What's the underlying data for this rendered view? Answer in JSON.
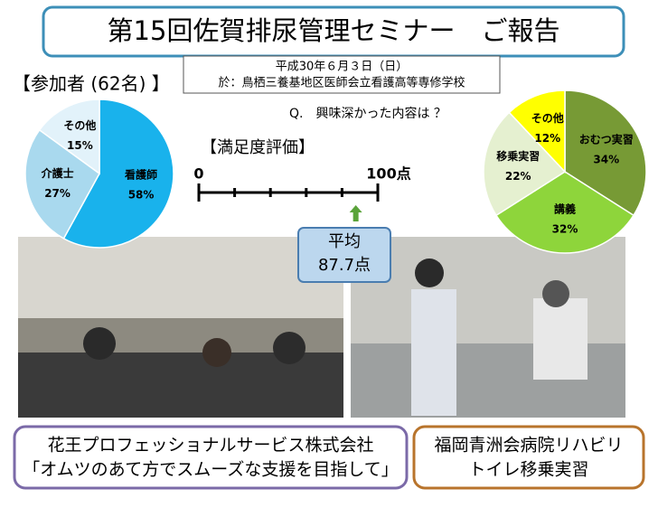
{
  "title": "第15回佐賀排尿管理セミナー　ご報告",
  "date": "平成30年６月３日（日）",
  "venue": "於：鳥栖三養基地区医師会立看護高等専修学校",
  "chart_data": [
    {
      "type": "pie",
      "title": "【参加者 (62名) 】",
      "categories": [
        "看護師",
        "介護士",
        "その他"
      ],
      "values": [
        58,
        27,
        15
      ],
      "value_labels": [
        "58%",
        "27%",
        "15%"
      ],
      "colors": [
        "#19b2ec",
        "#a9d9ee",
        "#e2f2fa"
      ]
    },
    {
      "type": "pie",
      "title": "Q.　興味深かった内容は ？",
      "categories": [
        "おむつ実習",
        "講義",
        "移乗実習",
        "その他"
      ],
      "values": [
        34,
        32,
        22,
        12
      ],
      "value_labels": [
        "34%",
        "32%",
        "22%",
        "12%"
      ],
      "colors": [
        "#779a35",
        "#8ed53b",
        "#e5f0d0",
        "#ffff00"
      ]
    },
    {
      "type": "scale",
      "title": "【満足度評価】",
      "xlim": [
        0,
        100
      ],
      "xticks": [
        0,
        {
          "value": 100,
          "label": "100点"
        }
      ],
      "minor_xticks": [
        20,
        40,
        60,
        80
      ],
      "average": {
        "label": "平均",
        "value": 87.7,
        "value_label": "87.7点"
      }
    }
  ],
  "footer": {
    "left": [
      "花王プロフェッショナルサービス株式会社",
      "「オムツのあて方でスムーズな支援を目指して」"
    ],
    "right": [
      "福岡青洲会病院リハビリ",
      "トイレ移乗実習"
    ]
  }
}
